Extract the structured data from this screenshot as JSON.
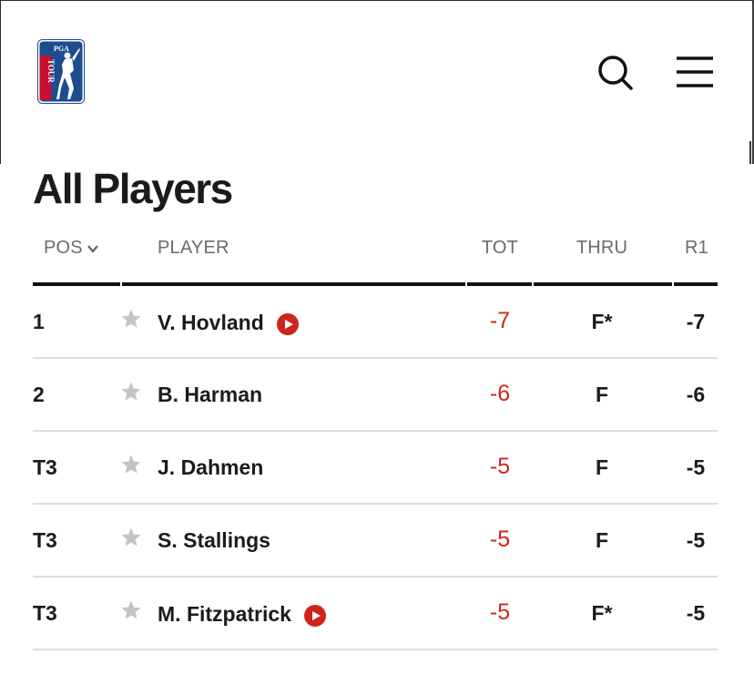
{
  "header": {
    "logo_top_text": "PGA",
    "logo_side_text": "TOUR"
  },
  "page": {
    "title": "All Players"
  },
  "table": {
    "columns": {
      "pos": "POS",
      "player": "PLAYER",
      "tot": "TOT",
      "thru": "THRU",
      "r1": "R1"
    },
    "rows": [
      {
        "pos": "1",
        "player": "V. Hovland",
        "tot": "-7",
        "thru": "F*",
        "r1": "-7",
        "video": true
      },
      {
        "pos": "2",
        "player": "B. Harman",
        "tot": "-6",
        "thru": "F",
        "r1": "-6",
        "video": false
      },
      {
        "pos": "T3",
        "player": "J. Dahmen",
        "tot": "-5",
        "thru": "F",
        "r1": "-5",
        "video": false
      },
      {
        "pos": "T3",
        "player": "S. Stallings",
        "tot": "-5",
        "thru": "F",
        "r1": "-5",
        "video": false
      },
      {
        "pos": "T3",
        "player": "M. Fitzpatrick",
        "tot": "-5",
        "thru": "F*",
        "r1": "-5",
        "video": true
      }
    ]
  },
  "icons": {
    "logo": "pga-tour-logo",
    "search": "search-icon",
    "menu": "hamburger-menu-icon",
    "sort": "chevron-down-icon",
    "favorite": "star-icon",
    "video": "play-icon"
  },
  "colors": {
    "score_red": "#d0251c",
    "logo_blue": "#1d4c8f",
    "logo_red": "#c8102e",
    "star_gray": "#c4c4c4"
  }
}
